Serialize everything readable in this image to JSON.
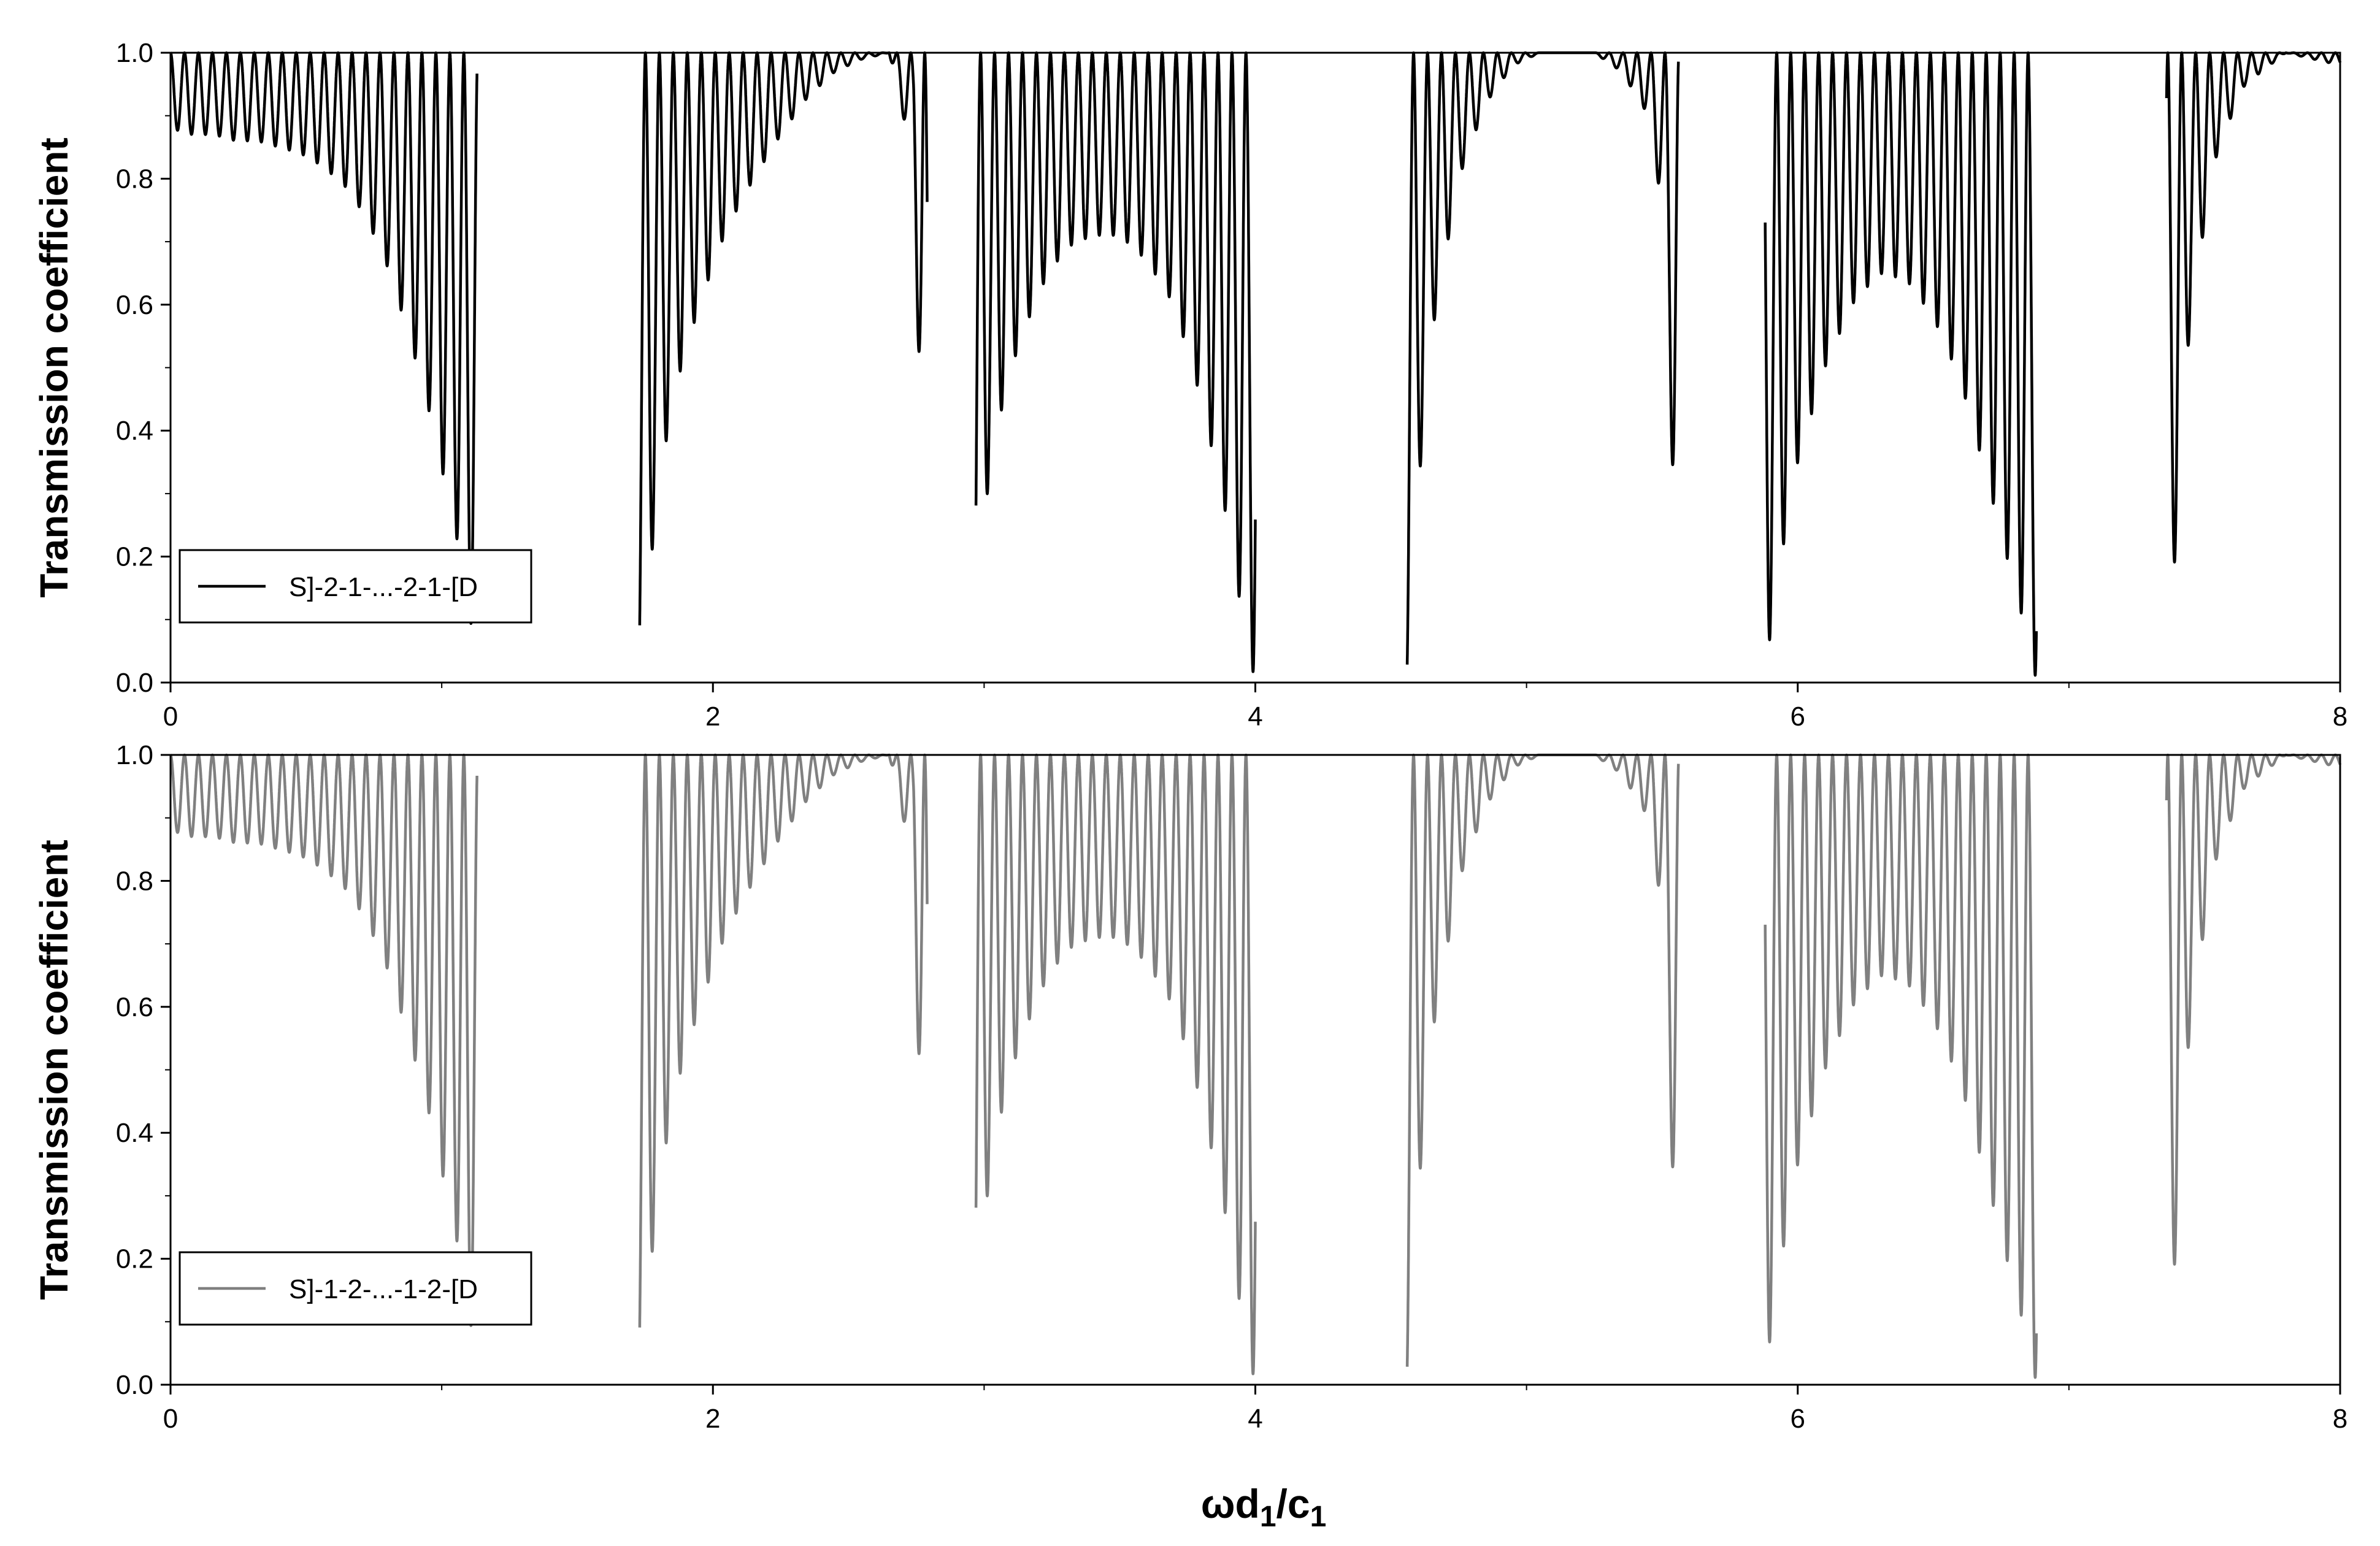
{
  "chart_data": [
    {
      "type": "line",
      "ylabel": "Transmission coefficient",
      "xlim": [
        0,
        8
      ],
      "ylim": [
        0,
        1
      ],
      "xticks": [
        "0",
        "2",
        "4",
        "6",
        "8"
      ],
      "yticks": [
        "0.0",
        "0.2",
        "0.4",
        "0.6",
        "0.8",
        "1.0"
      ],
      "legend_position": "bottom-left",
      "band_gaps": [
        [
          1.13,
          1.73
        ],
        [
          2.79,
          2.97
        ],
        [
          4.0,
          4.56
        ],
        [
          5.56,
          5.88
        ],
        [
          6.88,
          7.36
        ]
      ],
      "series": [
        {
          "name": "S]-2-1-...-2-1-[D",
          "color": "#000000",
          "x": [
            0.0,
            0.08,
            0.16,
            0.24,
            0.32,
            0.4,
            0.48,
            0.56,
            0.64,
            0.72,
            0.8,
            0.88,
            0.96,
            1.02,
            1.06,
            1.1,
            1.12,
            1.13,
            1.73,
            1.76,
            1.8,
            1.85,
            1.95,
            2.05,
            2.15,
            2.25,
            2.35,
            2.45,
            2.55,
            2.65,
            2.7,
            2.74,
            2.77,
            2.79,
            2.97,
            3.02,
            3.1,
            3.2,
            3.3,
            3.4,
            3.5,
            3.6,
            3.7,
            3.8,
            3.9,
            3.96,
            4.0,
            4.56,
            4.6,
            4.65,
            4.75,
            4.85,
            4.95,
            5.05,
            5.15,
            5.25,
            5.35,
            5.45,
            5.5,
            5.53,
            5.56,
            5.88,
            5.92,
            6.0,
            6.1,
            6.2,
            6.3,
            6.4,
            6.5,
            6.6,
            6.7,
            6.8,
            6.86,
            6.88,
            7.36,
            7.4,
            7.45,
            7.55,
            7.65,
            7.8,
            8.0
          ],
          "y_envelope_min": [
            0.88,
            0.87,
            0.87,
            0.86,
            0.86,
            0.85,
            0.84,
            0.82,
            0.79,
            0.74,
            0.66,
            0.55,
            0.42,
            0.3,
            0.22,
            0.12,
            0.05,
            0.0,
            0.01,
            0.15,
            0.3,
            0.45,
            0.6,
            0.72,
            0.8,
            0.87,
            0.93,
            0.97,
            0.99,
            1.0,
            0.9,
            0.85,
            0.3,
            0.13,
            0.03,
            0.35,
            0.5,
            0.62,
            0.69,
            0.71,
            0.71,
            0.67,
            0.6,
            0.45,
            0.25,
            0.08,
            0.0,
            0.01,
            0.3,
            0.55,
            0.8,
            0.92,
            0.98,
            1.0,
            1.0,
            1.0,
            0.97,
            0.9,
            0.75,
            0.45,
            0.04,
            0.01,
            0.15,
            0.35,
            0.5,
            0.6,
            0.65,
            0.64,
            0.58,
            0.48,
            0.32,
            0.15,
            0.05,
            0.0,
            0.02,
            0.25,
            0.6,
            0.85,
            0.95,
            1.0,
            0.98
          ],
          "y_peak": 1.0
        },
        {
          "name": "S]-1-2-...-1-2-[D",
          "color": "#808080",
          "x": [
            0.0,
            0.08,
            0.16,
            0.24,
            0.32,
            0.4,
            0.48,
            0.56,
            0.64,
            0.72,
            0.8,
            0.88,
            0.96,
            1.02,
            1.06,
            1.1,
            1.12,
            1.13,
            1.73,
            1.76,
            1.8,
            1.85,
            1.95,
            2.05,
            2.15,
            2.25,
            2.35,
            2.45,
            2.55,
            2.65,
            2.7,
            2.74,
            2.77,
            2.79,
            2.97,
            3.02,
            3.1,
            3.2,
            3.3,
            3.4,
            3.5,
            3.6,
            3.7,
            3.8,
            3.9,
            3.96,
            4.0,
            4.56,
            4.6,
            4.65,
            4.75,
            4.85,
            4.95,
            5.05,
            5.15,
            5.25,
            5.35,
            5.45,
            5.5,
            5.53,
            5.56,
            5.88,
            5.92,
            6.0,
            6.1,
            6.2,
            6.3,
            6.4,
            6.5,
            6.6,
            6.7,
            6.8,
            6.86,
            6.88,
            7.36,
            7.4,
            7.45,
            7.55,
            7.65,
            7.8,
            8.0
          ],
          "y_envelope_min": [
            0.88,
            0.87,
            0.87,
            0.86,
            0.86,
            0.85,
            0.84,
            0.82,
            0.79,
            0.74,
            0.66,
            0.55,
            0.42,
            0.3,
            0.22,
            0.12,
            0.05,
            0.0,
            0.01,
            0.15,
            0.3,
            0.45,
            0.6,
            0.72,
            0.8,
            0.87,
            0.93,
            0.97,
            0.99,
            1.0,
            0.9,
            0.85,
            0.3,
            0.13,
            0.03,
            0.35,
            0.5,
            0.62,
            0.69,
            0.71,
            0.71,
            0.67,
            0.6,
            0.45,
            0.25,
            0.08,
            0.0,
            0.01,
            0.3,
            0.55,
            0.8,
            0.92,
            0.98,
            1.0,
            1.0,
            1.0,
            0.97,
            0.9,
            0.75,
            0.45,
            0.04,
            0.01,
            0.15,
            0.35,
            0.5,
            0.6,
            0.65,
            0.64,
            0.58,
            0.48,
            0.32,
            0.15,
            0.05,
            0.0,
            0.02,
            0.25,
            0.6,
            0.85,
            0.95,
            1.0,
            0.98
          ],
          "y_peak": 1.0
        }
      ]
    }
  ],
  "xlabel": {
    "omega": "ω",
    "d": "d",
    "d_sub": "1",
    "slash": "/c",
    "c_sub": "1"
  }
}
